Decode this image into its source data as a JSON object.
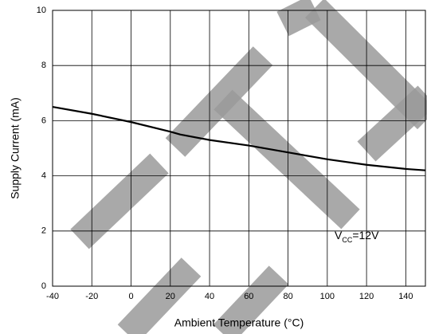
{
  "chart_data": {
    "type": "line",
    "x_label": "Ambient Temperature (°C)",
    "y_label": "Supply Current (mA)",
    "x": [
      -40,
      -20,
      0,
      20,
      25,
      40,
      60,
      80,
      100,
      120,
      140,
      150
    ],
    "series": [
      {
        "color": "#000000",
        "values": [
          6.5,
          6.25,
          5.95,
          5.6,
          5.5,
          5.3,
          5.1,
          4.85,
          4.6,
          4.4,
          4.25,
          4.2
        ]
      }
    ],
    "xlim": [
      -40,
      150
    ],
    "ylim": [
      0,
      10
    ],
    "xticks": [
      -40,
      -20,
      0,
      20,
      40,
      60,
      80,
      100,
      120,
      140
    ],
    "yticks": [
      0,
      2,
      4,
      6,
      8,
      10
    ],
    "grid": true,
    "annotation": {
      "text": "V",
      "subscript": "CC",
      "suffix": "=12V"
    }
  }
}
